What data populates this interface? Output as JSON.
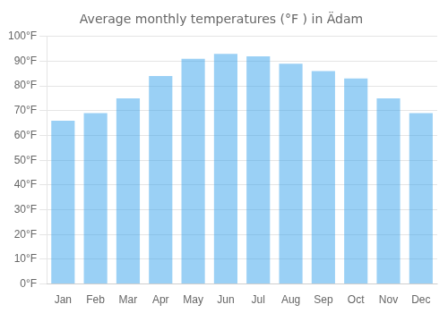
{
  "chart_data": {
    "type": "bar",
    "title": "Average monthly temperatures (°F ) in Ädam",
    "categories": [
      "Jan",
      "Feb",
      "Mar",
      "Apr",
      "May",
      "Jun",
      "Jul",
      "Aug",
      "Sep",
      "Oct",
      "Nov",
      "Dec"
    ],
    "values": [
      66,
      69,
      75,
      84,
      91,
      93,
      92,
      89,
      86,
      83,
      75,
      69
    ],
    "ylim": [
      0,
      100
    ],
    "yticks": [
      {
        "value": 0,
        "label": "0°F"
      },
      {
        "value": 10,
        "label": "10°F"
      },
      {
        "value": 20,
        "label": "20°F"
      },
      {
        "value": 30,
        "label": "30°F"
      },
      {
        "value": 40,
        "label": "40°F"
      },
      {
        "value": 50,
        "label": "50°F"
      },
      {
        "value": 60,
        "label": "60°F"
      },
      {
        "value": 70,
        "label": "70°F"
      },
      {
        "value": 80,
        "label": "80°F"
      },
      {
        "value": 90,
        "label": "90°F"
      },
      {
        "value": 100,
        "label": "100°F"
      }
    ],
    "grid": true
  }
}
